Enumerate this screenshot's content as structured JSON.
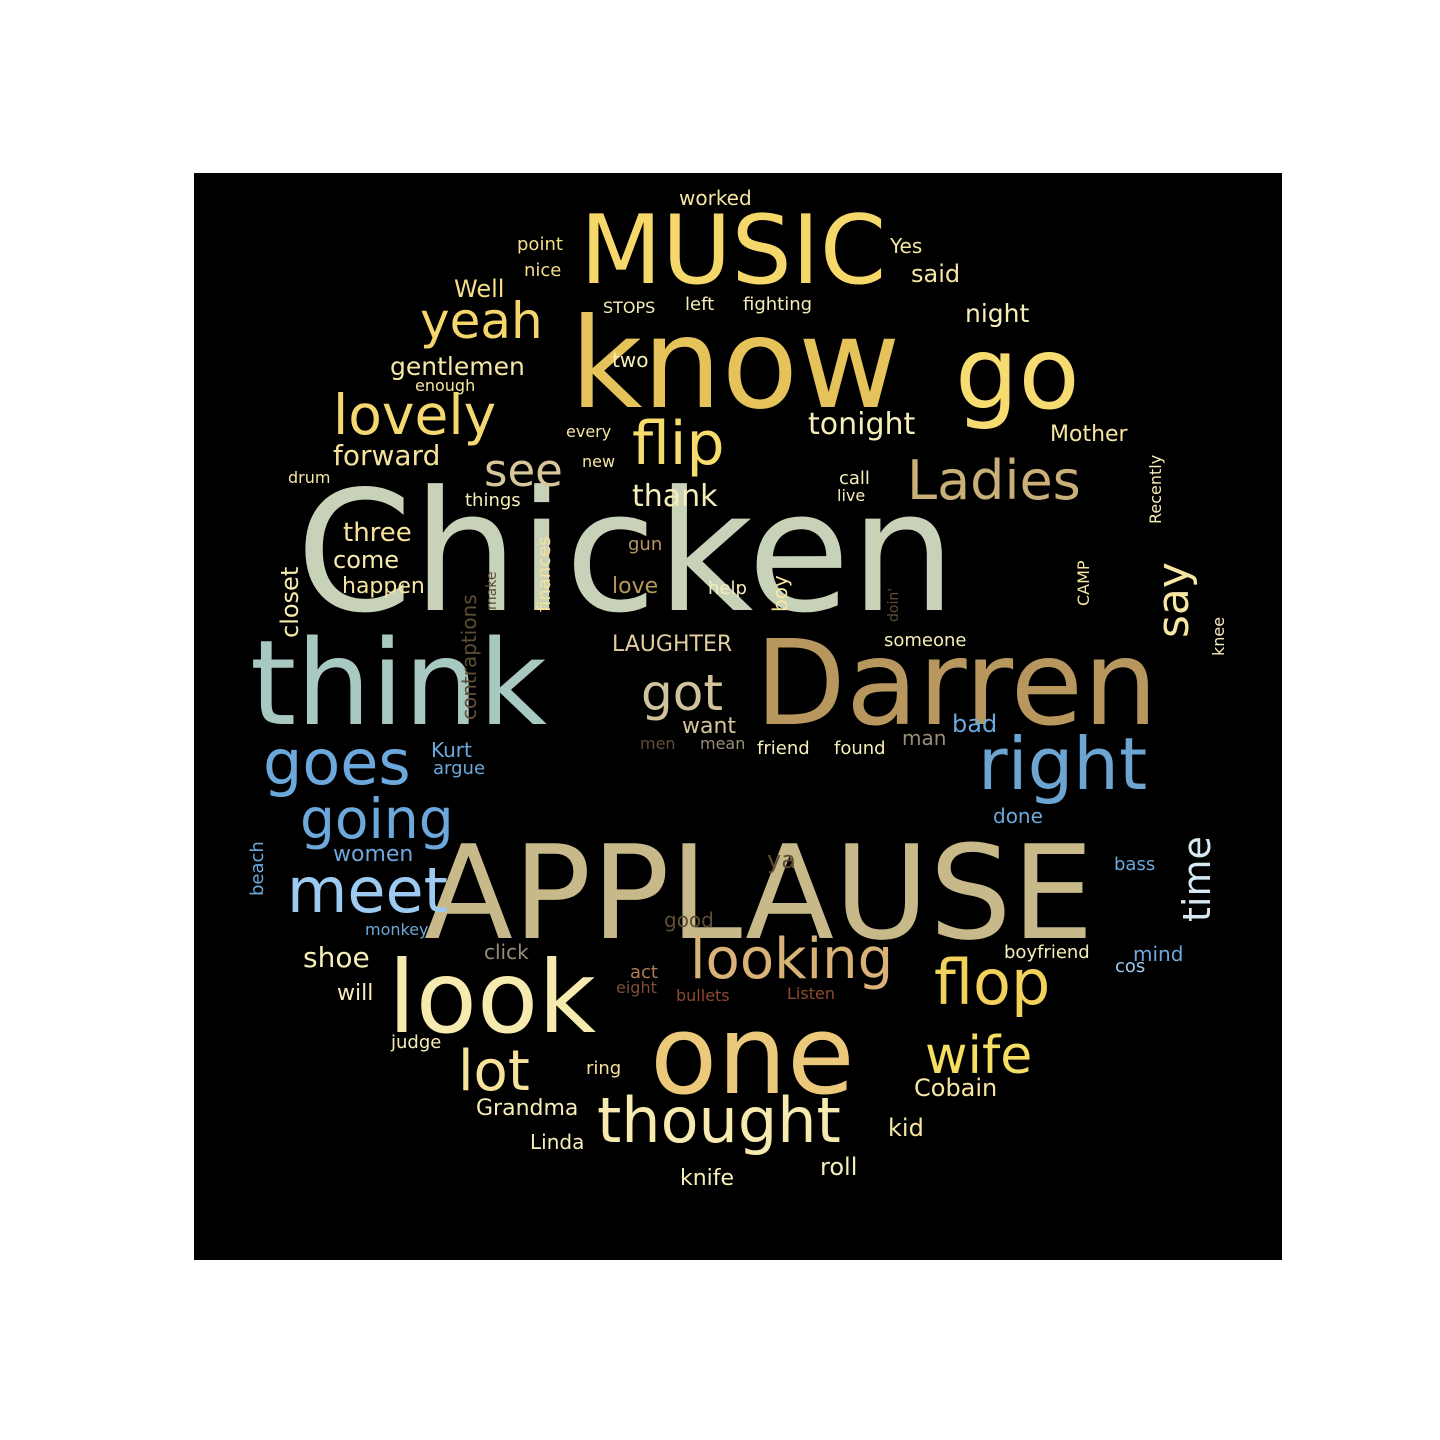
{
  "words": [
    {
      "text": "Chicken",
      "color": "#c8d2b8"
    },
    {
      "text": "APPLAUSE",
      "color": "#c8b98a"
    },
    {
      "text": "know",
      "color": "#e6c35a"
    },
    {
      "text": "Darren",
      "color": "#b8975f"
    },
    {
      "text": "think",
      "color": "#a8c8c2"
    },
    {
      "text": "one",
      "color": "#ecc87a"
    },
    {
      "text": "MUSIC",
      "color": "#f6d86a"
    },
    {
      "text": "look",
      "color": "#f6eaae"
    },
    {
      "text": "go",
      "color": "#f6dc70"
    },
    {
      "text": "right",
      "color": "#6ca4d2"
    },
    {
      "text": "goes",
      "color": "#6ca8dc"
    },
    {
      "text": "meet",
      "color": "#9ccaf0"
    },
    {
      "text": "looking",
      "color": "#d8b277"
    },
    {
      "text": "thought",
      "color": "#f6eaae"
    },
    {
      "text": "flop",
      "color": "#f2d25a"
    },
    {
      "text": "flip",
      "color": "#f6dc6a"
    },
    {
      "text": "Ladies",
      "color": "#c8b078"
    },
    {
      "text": "lovely",
      "color": "#f6d870"
    },
    {
      "text": "going",
      "color": "#6ca8dc"
    },
    {
      "text": "yeah",
      "color": "#f4d66c"
    },
    {
      "text": "got",
      "color": "#d2c49a"
    },
    {
      "text": "wife",
      "color": "#f6de62"
    },
    {
      "text": "lot",
      "color": "#f6e29a"
    },
    {
      "text": "see",
      "color": "#d6c69a"
    },
    {
      "text": "say",
      "color": "#f6e6a2"
    },
    {
      "text": "time",
      "color": "#d6e8f2"
    },
    {
      "text": "tonight",
      "color": "#f6eeb8"
    },
    {
      "text": "thank",
      "color": "#f6eeb8"
    },
    {
      "text": "forward",
      "color": "#f6e29a"
    },
    {
      "text": "gentlemen",
      "color": "#f6e6a8"
    },
    {
      "text": "Mother",
      "color": "#f6e6a2"
    },
    {
      "text": "Well",
      "color": "#f6de8a"
    },
    {
      "text": "said",
      "color": "#f6e6a2"
    },
    {
      "text": "night",
      "color": "#f6eeb8"
    },
    {
      "text": "three",
      "color": "#f6e29a"
    },
    {
      "text": "come",
      "color": "#f6eaae"
    },
    {
      "text": "happen",
      "color": "#f6e6a2"
    },
    {
      "text": "closet",
      "color": "#f6eaae"
    },
    {
      "text": "contraptions",
      "color": "#5e4e34"
    },
    {
      "text": "finances",
      "color": "#f6e29a"
    },
    {
      "text": "LAUGHTER",
      "color": "#e2cfa0"
    },
    {
      "text": "shoe",
      "color": "#f6eeb8"
    },
    {
      "text": "women",
      "color": "#6ca8dc"
    },
    {
      "text": "Kurt",
      "color": "#6ca8dc"
    },
    {
      "text": "argue",
      "color": "#6ca8dc"
    },
    {
      "text": "want",
      "color": "#d6c69a"
    },
    {
      "text": "bad",
      "color": "#6ca8dc"
    },
    {
      "text": "man",
      "color": "#9a8e78"
    },
    {
      "text": "done",
      "color": "#6ca8dc"
    },
    {
      "text": "Grandma",
      "color": "#f6eeb8"
    },
    {
      "text": "Cobain",
      "color": "#f6e6a2"
    },
    {
      "text": "kid",
      "color": "#f6e6a2"
    },
    {
      "text": "roll",
      "color": "#f6eeb8"
    },
    {
      "text": "knife",
      "color": "#f6eeb8"
    },
    {
      "text": "Linda",
      "color": "#f6eeb8"
    },
    {
      "text": "judge",
      "color": "#f6eeb8"
    },
    {
      "text": "will",
      "color": "#f6eeb8"
    },
    {
      "text": "ring",
      "color": "#f6e29a"
    },
    {
      "text": "click",
      "color": "#9a8e78"
    },
    {
      "text": "act",
      "color": "#b07e52"
    },
    {
      "text": "eight",
      "color": "#7e4e34"
    },
    {
      "text": "bullets",
      "color": "#8e4a32"
    },
    {
      "text": "Listen",
      "color": "#8e4a32"
    },
    {
      "text": "good",
      "color": "#5e4e34"
    },
    {
      "text": "ya",
      "color": "#5e4e34"
    },
    {
      "text": "boyfriend",
      "color": "#f6eeb8"
    },
    {
      "text": "mind",
      "color": "#6ca8dc"
    },
    {
      "text": "cos",
      "color": "#9ccaf0"
    },
    {
      "text": "bass",
      "color": "#6ca8dc"
    },
    {
      "text": "monkey",
      "color": "#6ca8dc"
    },
    {
      "text": "beach",
      "color": "#6ca8dc"
    },
    {
      "text": "friend",
      "color": "#f6eeb8"
    },
    {
      "text": "found",
      "color": "#f6eeb8"
    },
    {
      "text": "men",
      "color": "#5e4e34"
    },
    {
      "text": "mean",
      "color": "#9a8e78"
    },
    {
      "text": "someone",
      "color": "#f6eeb8"
    },
    {
      "text": "knee",
      "color": "#f6eeb8"
    },
    {
      "text": "CAMP",
      "color": "#f6e6a2"
    },
    {
      "text": "boy",
      "color": "#f6e6a2"
    },
    {
      "text": "help",
      "color": "#f6eeb8"
    },
    {
      "text": "love",
      "color": "#b8975f"
    },
    {
      "text": "gun",
      "color": "#b8975f"
    },
    {
      "text": "make",
      "color": "#5e4e34"
    },
    {
      "text": "doin'",
      "color": "#5e4e34"
    },
    {
      "text": "call",
      "color": "#f6eeb8"
    },
    {
      "text": "live",
      "color": "#f6eeb8"
    },
    {
      "text": "Recently",
      "color": "#f6eeb8"
    },
    {
      "text": "things",
      "color": "#f6eeb8"
    },
    {
      "text": "new",
      "color": "#f6e6a2"
    },
    {
      "text": "every",
      "color": "#f6e6a2"
    },
    {
      "text": "drum",
      "color": "#f6e6a2"
    },
    {
      "text": "enough",
      "color": "#f6e6a2"
    },
    {
      "text": "two",
      "color": "#f6eeb8"
    },
    {
      "text": "STOPS",
      "color": "#f6eeb8"
    },
    {
      "text": "left",
      "color": "#f6eeb8"
    },
    {
      "text": "fighting",
      "color": "#f6eeb8"
    },
    {
      "text": "point",
      "color": "#f6de8a"
    },
    {
      "text": "nice",
      "color": "#f6de8a"
    },
    {
      "text": "worked",
      "color": "#f6e6a2"
    },
    {
      "text": "Yes",
      "color": "#f6e6a2"
    }
  ]
}
